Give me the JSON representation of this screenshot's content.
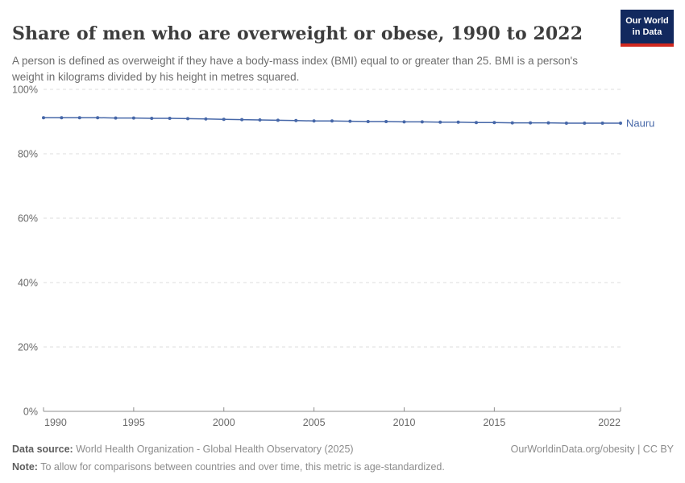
{
  "header": {
    "title": "Share of men who are overweight or obese, 1990 to 2022",
    "subtitle": "A person is defined as overweight if they have a body-mass index (BMI) equal to or greater than 25. BMI is a person's weight in kilograms divided by his height in metres squared.",
    "logo": {
      "line1": "Our World",
      "line2": "in Data",
      "bg_color": "#12295E",
      "accent_color": "#D0281E"
    }
  },
  "chart_data": {
    "type": "line",
    "title": "Share of men who are overweight or obese, 1990 to 2022",
    "x": [
      1990,
      1991,
      1992,
      1993,
      1994,
      1995,
      1996,
      1997,
      1998,
      1999,
      2000,
      2001,
      2002,
      2003,
      2004,
      2005,
      2006,
      2007,
      2008,
      2009,
      2010,
      2011,
      2012,
      2013,
      2014,
      2015,
      2016,
      2017,
      2018,
      2019,
      2020,
      2021,
      2022
    ],
    "series": [
      {
        "name": "Nauru",
        "color": "#4667A8",
        "values": [
          91.2,
          91.2,
          91.2,
          91.2,
          91.1,
          91.1,
          91.0,
          91.0,
          90.9,
          90.8,
          90.7,
          90.6,
          90.5,
          90.4,
          90.3,
          90.2,
          90.2,
          90.1,
          90.0,
          90.0,
          89.9,
          89.9,
          89.8,
          89.8,
          89.7,
          89.7,
          89.6,
          89.6,
          89.6,
          89.5,
          89.5,
          89.5,
          89.5
        ]
      }
    ],
    "xlabel": "",
    "ylabel": "",
    "ylim": [
      0,
      100
    ],
    "yticks": [
      0,
      20,
      40,
      60,
      80,
      100
    ],
    "ytick_suffix": "%",
    "xticks": [
      1990,
      1995,
      2000,
      2005,
      2010,
      2015,
      2022
    ],
    "grid": "horizontal-dashed",
    "legend_position": "end-of-line-label",
    "colors": {
      "gridline": "#dcdcdc",
      "axis": "#8f8f8f",
      "tick_label": "#696969"
    }
  },
  "footer": {
    "datasource_label": "Data source:",
    "datasource_text": " World Health Organization - Global Health Observatory (2025)",
    "note_label": "Note:",
    "note_text": " To allow for comparisons between countries and over time, this metric is age-standardized.",
    "right_text": "OurWorldinData.org/obesity | CC BY"
  }
}
